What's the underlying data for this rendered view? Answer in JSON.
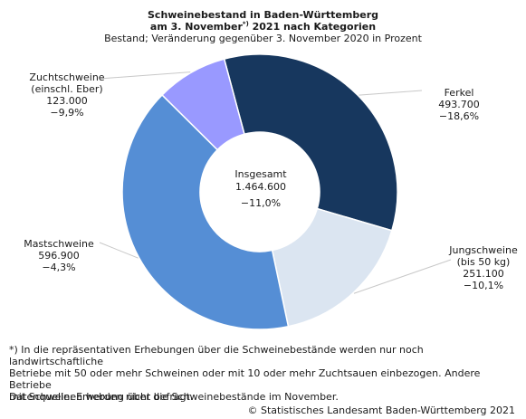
{
  "chart_data": {
    "type": "pie",
    "variant": "donut",
    "title_line1": "Schweinebestand in Baden-Württemberg",
    "title_line2_prefix": "am 3. November",
    "title_line2_sup": "*)",
    "title_line2_suffix": " 2021 nach Kategorien",
    "subtitle": "Bestand; Veränderung gegenüber 3. November 2020 in Prozent",
    "center": {
      "label": "Insgesamt",
      "value_text": "1.464.600",
      "change_text": "−11,0%",
      "value": 1464600,
      "change": -11.0
    },
    "segments": [
      {
        "key": "ferkel",
        "label_lines": [
          "Ferkel"
        ],
        "value": 493700,
        "value_text": "493.700",
        "change": -18.6,
        "change_text": "−18,6%",
        "color": "#17375e"
      },
      {
        "key": "jungschweine",
        "label_lines": [
          "Jungschweine",
          "(bis 50 kg)"
        ],
        "value": 251100,
        "value_text": "251.100",
        "change": -10.1,
        "change_text": "−10,1%",
        "color": "#dbe5f1"
      },
      {
        "key": "mastschweine",
        "label_lines": [
          "Mastschweine"
        ],
        "value": 596900,
        "value_text": "596.900",
        "change": -4.3,
        "change_text": "−4,3%",
        "color": "#558ed5"
      },
      {
        "key": "zuchtschweine",
        "label_lines": [
          "Zuchtschweine",
          "(einschl. Eber)"
        ],
        "value": 123000,
        "value_text": "123.000",
        "change": -9.9,
        "change_text": "−9,9%",
        "color": "#9999ff"
      }
    ]
  },
  "footnote": {
    "line1": "*) In die repräsentativen Erhebungen über die Schweinebestände werden nur noch landwirtschaftliche",
    "line2": "Betriebe mit 50 oder mehr Schweinen oder mit 10 oder mehr Zuchtsauen einbezogen. Andere Betriebe",
    "line3": "mit Schweinen werden nicht befragt."
  },
  "source": "Datenquelle: Erhebung über die Schweinebestände im November.",
  "copyright": "© Statistisches Landesamt Baden-Württemberg 2021"
}
